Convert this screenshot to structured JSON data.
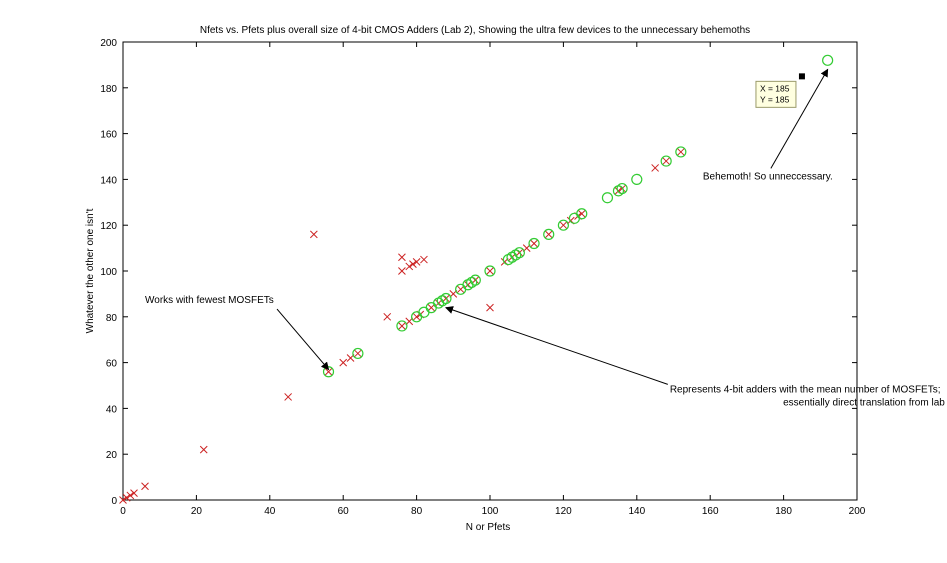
{
  "chart_data": {
    "type": "scatter",
    "title": "Nfets vs. Pfets plus overall size of 4-bit CMOS Adders (Lab 2), Showing the ultra few devices to the unnecessary behemoths",
    "xlabel": "N or Pfets",
    "ylabel": "Whatever the other one isn't",
    "xlim": [
      0,
      200
    ],
    "ylim": [
      0,
      200
    ],
    "x_ticks": [
      0,
      20,
      40,
      60,
      80,
      100,
      120,
      140,
      160,
      180,
      200
    ],
    "y_ticks": [
      0,
      20,
      40,
      60,
      80,
      100,
      120,
      140,
      160,
      180,
      200
    ],
    "grid": false,
    "legend": "none",
    "series": [
      {
        "marker": "x",
        "color": "#cc2222",
        "points": [
          [
            0,
            0
          ],
          [
            1,
            1
          ],
          [
            2,
            2
          ],
          [
            3,
            3
          ],
          [
            6,
            6
          ],
          [
            22,
            22
          ],
          [
            45,
            45
          ],
          [
            52,
            116
          ],
          [
            56,
            56
          ],
          [
            60,
            60
          ],
          [
            62,
            62
          ],
          [
            64,
            64
          ],
          [
            72,
            80
          ],
          [
            76,
            76
          ],
          [
            76,
            100
          ],
          [
            76,
            106
          ],
          [
            78,
            78
          ],
          [
            78,
            102
          ],
          [
            79,
            103
          ],
          [
            80,
            80
          ],
          [
            80,
            104
          ],
          [
            81,
            81
          ],
          [
            82,
            105
          ],
          [
            84,
            84
          ],
          [
            86,
            86
          ],
          [
            88,
            88
          ],
          [
            90,
            90
          ],
          [
            92,
            92
          ],
          [
            94,
            94
          ],
          [
            96,
            96
          ],
          [
            100,
            100
          ],
          [
            100,
            84
          ],
          [
            104,
            104
          ],
          [
            106,
            106
          ],
          [
            108,
            108
          ],
          [
            110,
            110
          ],
          [
            112,
            112
          ],
          [
            116,
            116
          ],
          [
            120,
            120
          ],
          [
            122,
            122
          ],
          [
            124,
            124
          ],
          [
            125,
            125
          ],
          [
            135,
            135
          ],
          [
            136,
            136
          ],
          [
            145,
            145
          ],
          [
            148,
            148
          ],
          [
            152,
            152
          ]
        ]
      },
      {
        "marker": "circle",
        "color": "#33cc33",
        "points": [
          [
            56,
            56
          ],
          [
            64,
            64
          ],
          [
            76,
            76
          ],
          [
            80,
            80
          ],
          [
            82,
            82
          ],
          [
            84,
            84
          ],
          [
            86,
            86
          ],
          [
            87,
            87
          ],
          [
            88,
            88
          ],
          [
            92,
            92
          ],
          [
            94,
            94
          ],
          [
            95,
            95
          ],
          [
            96,
            96
          ],
          [
            100,
            100
          ],
          [
            105,
            105
          ],
          [
            106,
            106
          ],
          [
            107,
            107
          ],
          [
            108,
            108
          ],
          [
            112,
            112
          ],
          [
            116,
            116
          ],
          [
            120,
            120
          ],
          [
            123,
            123
          ],
          [
            125,
            125
          ],
          [
            132,
            132
          ],
          [
            135,
            135
          ],
          [
            136,
            136
          ],
          [
            140,
            140
          ],
          [
            148,
            148
          ],
          [
            152,
            152
          ],
          [
            192,
            192
          ]
        ]
      }
    ],
    "annotations": [
      {
        "text": "Works with fewest MOSFETs",
        "label_at": [
          6,
          86
        ],
        "point_to": [
          56,
          57
        ]
      },
      {
        "lines": [
          "Represents 4-bit adders with the mean number of MOSFETs;",
          "essentially direct translation from lab"
        ],
        "label_at": [
          149,
          47
        ],
        "point_to": [
          88,
          84
        ]
      },
      {
        "text": "Behemoth! So unneccessary.",
        "label_at": [
          158,
          140
        ],
        "point_to": [
          192,
          188
        ]
      }
    ],
    "datatip": {
      "point": [
        185,
        185
      ],
      "lines": [
        "X = 185",
        "Y = 185"
      ]
    }
  }
}
